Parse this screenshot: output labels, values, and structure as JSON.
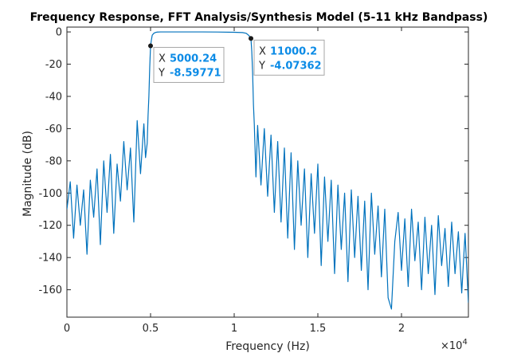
{
  "colors": {
    "series": "#0072bd",
    "axis": "#262626",
    "datatip_value": "#0b8be6",
    "datatip_border": "#a6a6a6",
    "datatip_bg": "#ffffff",
    "marker": "#1a1a1a"
  },
  "chart_data": {
    "type": "line",
    "title": "Frequency Response, FFT Analysis/Synthesis Model (5-11 kHz Bandpass)",
    "xlabel": "Frequency (Hz)",
    "ylabel": "Magnitude (dB)",
    "xlim": [
      0,
      24000
    ],
    "ylim": [
      -177,
      3
    ],
    "x_exponent_label": "×10",
    "x_exponent_power": "4",
    "x_ticks": [
      {
        "value": 0,
        "label": "0"
      },
      {
        "value": 5000,
        "label": "0.5"
      },
      {
        "value": 10000,
        "label": "1"
      },
      {
        "value": 15000,
        "label": "1.5"
      },
      {
        "value": 20000,
        "label": "2"
      }
    ],
    "y_ticks": [
      {
        "value": 0,
        "label": "0"
      },
      {
        "value": -20,
        "label": "-20"
      },
      {
        "value": -40,
        "label": "-40"
      },
      {
        "value": -60,
        "label": "-60"
      },
      {
        "value": -80,
        "label": "-80"
      },
      {
        "value": -100,
        "label": "-100"
      },
      {
        "value": -120,
        "label": "-120"
      },
      {
        "value": -140,
        "label": "-140"
      },
      {
        "value": -160,
        "label": "-160"
      }
    ],
    "grid": false,
    "legend": "none",
    "series": [
      {
        "x": [
          0,
          200,
          400,
          600,
          800,
          1000,
          1200,
          1400,
          1600,
          1800,
          2000,
          2200,
          2400,
          2600,
          2800,
          3000,
          3200,
          3400,
          3600,
          3800,
          4000,
          4200,
          4400,
          4600,
          4700,
          4800,
          4850,
          4900,
          4950,
          5000,
          5050,
          5100,
          5200,
          5300,
          5400,
          5600,
          6000,
          7000,
          8000,
          9000,
          10000,
          10500,
          10700,
          10800,
          10900,
          11000,
          11050,
          11100,
          11150,
          11200,
          11300,
          11400,
          11600,
          11800,
          12000,
          12200,
          12400,
          12600,
          12800,
          13000,
          13200,
          13400,
          13600,
          13800,
          14000,
          14200,
          14400,
          14600,
          14800,
          15000,
          15200,
          15400,
          15600,
          15800,
          16000,
          16200,
          16400,
          16600,
          16800,
          17000,
          17200,
          17400,
          17600,
          17800,
          18000,
          18200,
          18400,
          18600,
          18800,
          19000,
          19200,
          19400,
          19600,
          19800,
          20000,
          20200,
          20400,
          20600,
          20800,
          21000,
          21200,
          21400,
          21600,
          21800,
          22000,
          22200,
          22400,
          22600,
          22800,
          23000,
          23200,
          23400,
          23600,
          23800,
          24000
        ],
        "y": [
          -110,
          -93,
          -128,
          -95,
          -120,
          -98,
          -138,
          -92,
          -115,
          -85,
          -132,
          -80,
          -112,
          -76,
          -125,
          -82,
          -105,
          -68,
          -98,
          -72,
          -118,
          -55,
          -88,
          -57,
          -78,
          -69,
          -52,
          -40,
          -22,
          -8.6,
          -5,
          -2,
          -0.8,
          -0.3,
          -0.1,
          0,
          0,
          0,
          0,
          -0.05,
          -0.2,
          -0.4,
          -0.8,
          -1.5,
          -2.5,
          -4.07,
          -12,
          -25,
          -45,
          -57,
          -90,
          -58,
          -95,
          -60,
          -102,
          -64,
          -112,
          -68,
          -118,
          -72,
          -128,
          -75,
          -135,
          -80,
          -120,
          -85,
          -140,
          -88,
          -125,
          -82,
          -145,
          -90,
          -130,
          -92,
          -150,
          -95,
          -135,
          -100,
          -155,
          -98,
          -140,
          -102,
          -148,
          -105,
          -160,
          -100,
          -138,
          -108,
          -152,
          -110,
          -165,
          -172,
          -130,
          -112,
          -148,
          -116,
          -158,
          -110,
          -142,
          -118,
          -160,
          -115,
          -150,
          -120,
          -163,
          -114,
          -145,
          -122,
          -158,
          -118,
          -150,
          -124,
          -162,
          -125,
          -168
        ]
      }
    ],
    "datatips": [
      {
        "x_key": "X",
        "x_value": "5000.24",
        "y_key": "Y",
        "y_value": "-8.59771",
        "x": 5000.24,
        "y": -8.59771
      },
      {
        "x_key": "X",
        "x_value": "11000.2",
        "y_key": "Y",
        "y_value": "-4.07362",
        "x": 11000.2,
        "y": -4.07362
      }
    ]
  }
}
